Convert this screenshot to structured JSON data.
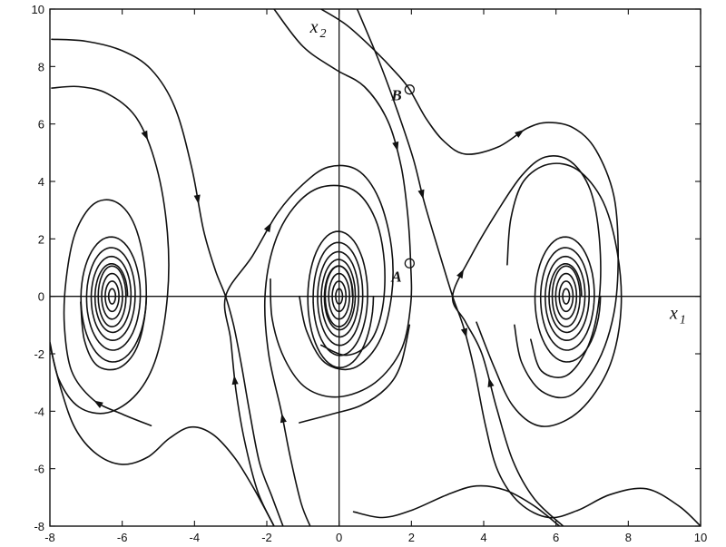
{
  "chart_data": {
    "type": "phase-portrait",
    "xlim": [
      -8,
      10
    ],
    "ylim": [
      -8,
      10
    ],
    "x_ticks": [
      -8,
      -6,
      -4,
      -2,
      0,
      2,
      4,
      6,
      8,
      10
    ],
    "y_ticks": [
      -8,
      -6,
      -4,
      -2,
      0,
      2,
      4,
      6,
      8,
      10
    ],
    "x_tick_labels": [
      "-8",
      "-6",
      "-4",
      "-2",
      "0",
      "2",
      "4",
      "6",
      "8",
      "10"
    ],
    "y_tick_labels": [
      "-8",
      "-6",
      "-4",
      "-2",
      "0",
      "2",
      "4",
      "6",
      "8",
      "10"
    ],
    "xlabel": {
      "base": "x",
      "sub": "1"
    },
    "ylabel": {
      "base": "x",
      "sub": "2"
    },
    "grid": false,
    "equilibria": {
      "spirals": [
        [
          -6.28,
          0
        ],
        [
          0,
          0
        ],
        [
          6.28,
          0
        ]
      ],
      "saddles": [
        [
          -3.14,
          0
        ],
        [
          3.14,
          0
        ]
      ]
    },
    "marked_points": [
      {
        "label": "A",
        "x": 1.95,
        "y": 1.15
      },
      {
        "label": "B",
        "x": 1.95,
        "y": 7.2
      }
    ],
    "trajectories": [
      {
        "name": "top-outer-left",
        "points": [
          [
            -7.95,
            8.95
          ],
          [
            -7,
            8.88
          ],
          [
            -6,
            8.55
          ],
          [
            -5.2,
            7.9
          ],
          [
            -4.55,
            6.6
          ],
          [
            -4.08,
            4.5
          ],
          [
            -3.75,
            2.3
          ],
          [
            -3.42,
            0.9
          ],
          [
            -3.14,
            0
          ],
          [
            -2.92,
            -1
          ],
          [
            -2.7,
            -2.4
          ],
          [
            -2.48,
            -4
          ],
          [
            -2.2,
            -5.8
          ],
          [
            -1.85,
            -7
          ],
          [
            -1.55,
            -8
          ]
        ],
        "arrows": [
          0.42
        ]
      },
      {
        "name": "top-inner-left",
        "points": [
          [
            -7.95,
            7.25
          ],
          [
            -7.2,
            7.3
          ],
          [
            -6.4,
            7.05
          ],
          [
            -5.6,
            6.2
          ],
          [
            -5.05,
            4.5
          ],
          [
            -4.75,
            2.2
          ],
          [
            -4.75,
            0
          ],
          [
            -5.05,
            -2.1
          ],
          [
            -5.6,
            -3.4
          ],
          [
            -6.4,
            -4.05
          ],
          [
            -7.2,
            -3.85
          ],
          [
            -7.75,
            -2.9
          ],
          [
            -8,
            -1.6
          ]
        ],
        "arrows": [
          0.22
        ]
      },
      {
        "name": "top-middle",
        "points": [
          [
            -1.8,
            10
          ],
          [
            -1,
            8.7
          ],
          [
            -0.1,
            7.9
          ],
          [
            0.7,
            7.3
          ],
          [
            1.35,
            6.1
          ],
          [
            1.72,
            4.5
          ],
          [
            1.9,
            2.8
          ],
          [
            1.98,
            1.15
          ],
          [
            1.98,
            -0.3
          ],
          [
            1.72,
            -1.85
          ],
          [
            1,
            -3
          ],
          [
            0,
            -3.5
          ],
          [
            -0.9,
            -3.2
          ],
          [
            -1.5,
            -2.2
          ],
          [
            -1.85,
            -0.8
          ],
          [
            -1.9,
            0.6
          ]
        ],
        "arrows": [
          0.3
        ]
      },
      {
        "name": "top-right",
        "points": [
          [
            -0.5,
            10
          ],
          [
            0.2,
            9.45
          ],
          [
            0.95,
            8.6
          ],
          [
            1.6,
            7.75
          ],
          [
            1.95,
            7.2
          ],
          [
            2.4,
            6.2
          ],
          [
            2.9,
            5.4
          ],
          [
            3.5,
            4.95
          ],
          [
            4.4,
            5.2
          ],
          [
            5.2,
            5.85
          ],
          [
            5.8,
            6.05
          ],
          [
            6.5,
            5.85
          ],
          [
            7.1,
            5.1
          ],
          [
            7.6,
            3.5
          ],
          [
            7.72,
            1.4
          ],
          [
            7.6,
            -0.6
          ],
          [
            7.15,
            -2.3
          ],
          [
            6.4,
            -3.45
          ],
          [
            5.6,
            -3.3
          ],
          [
            5.05,
            -2.3
          ],
          [
            4.85,
            -1
          ]
        ],
        "arrows": [
          0.37
        ]
      },
      {
        "name": "diag-right",
        "points": [
          [
            0.5,
            10
          ],
          [
            1.1,
            8.2
          ],
          [
            1.6,
            6.5
          ],
          [
            2.05,
            4.8
          ],
          [
            2.35,
            3.3
          ],
          [
            2.75,
            1.6
          ],
          [
            3.14,
            0
          ],
          [
            3.45,
            -1.1
          ],
          [
            3.75,
            -2.6
          ],
          [
            4.05,
            -4.5
          ],
          [
            4.4,
            -6.1
          ],
          [
            5,
            -7.2
          ],
          [
            5.8,
            -7.7
          ],
          [
            6.6,
            -7.45
          ],
          [
            7.5,
            -6.9
          ],
          [
            8.5,
            -6.7
          ],
          [
            9.4,
            -7.3
          ],
          [
            10,
            -8
          ]
        ],
        "arrows": [
          0.27,
          0.47
        ]
      },
      {
        "name": "right-sep-up",
        "points": [
          [
            6.2,
            -8
          ],
          [
            5.4,
            -7.05
          ],
          [
            4.8,
            -5.7
          ],
          [
            4.35,
            -3.85
          ],
          [
            3.95,
            -2
          ],
          [
            3.5,
            -0.9
          ],
          [
            3.14,
            0
          ],
          [
            3.65,
            1.4
          ],
          [
            4.35,
            2.9
          ],
          [
            5.05,
            4.2
          ],
          [
            5.7,
            4.85
          ],
          [
            6.4,
            4.7
          ],
          [
            6.95,
            3.7
          ],
          [
            7.2,
            2
          ],
          [
            7.2,
            0
          ],
          [
            6.9,
            -1.7
          ],
          [
            6.3,
            -2.75
          ],
          [
            5.6,
            -2.6
          ],
          [
            5.3,
            -1.5
          ]
        ],
        "arrows": [
          0.22,
          0.38
        ]
      },
      {
        "name": "left-sep-up",
        "points": [
          [
            -1.8,
            -8
          ],
          [
            -2.25,
            -6.8
          ],
          [
            -2.62,
            -5
          ],
          [
            -2.85,
            -3.3
          ],
          [
            -3,
            -1.5
          ],
          [
            -3.14,
            0
          ],
          [
            -2.4,
            1.4
          ],
          [
            -1.7,
            2.9
          ],
          [
            -1,
            3.9
          ],
          [
            -0.3,
            4.5
          ],
          [
            0.5,
            4.4
          ],
          [
            1.1,
            3.4
          ],
          [
            1.45,
            1.7
          ],
          [
            1.45,
            0
          ],
          [
            1.1,
            -1.6
          ],
          [
            0.4,
            -2.5
          ],
          [
            -0.4,
            -2.3
          ],
          [
            -0.9,
            -1.2
          ],
          [
            -1.1,
            0
          ]
        ],
        "arrows": [
          0.2,
          0.42
        ]
      },
      {
        "name": "middle-up",
        "points": [
          [
            -0.8,
            -8
          ],
          [
            -1.05,
            -7.2
          ],
          [
            -1.35,
            -5.6
          ],
          [
            -1.6,
            -4
          ],
          [
            -1.95,
            -2
          ],
          [
            -2.05,
            0
          ],
          [
            -1.8,
            1.8
          ],
          [
            -1.25,
            3.1
          ],
          [
            -0.5,
            3.8
          ],
          [
            0.4,
            3.7
          ],
          [
            1,
            2.7
          ],
          [
            1.25,
            1.2
          ],
          [
            1.2,
            -0.4
          ],
          [
            0.85,
            -1.6
          ],
          [
            0.2,
            -2.05
          ],
          [
            -0.5,
            -1.7
          ]
        ],
        "arrows": [
          0.18
        ]
      },
      {
        "name": "left-bottom",
        "points": [
          [
            -8,
            -1.7
          ],
          [
            -7.7,
            -3.2
          ],
          [
            -7.3,
            -4.6
          ],
          [
            -6.7,
            -5.5
          ],
          [
            -6,
            -5.85
          ],
          [
            -5.3,
            -5.6
          ],
          [
            -4.7,
            -4.95
          ],
          [
            -4.1,
            -4.55
          ],
          [
            -3.5,
            -4.8
          ],
          [
            -2.9,
            -5.6
          ],
          [
            -2.4,
            -6.6
          ],
          [
            -2.05,
            -7.4
          ],
          [
            -1.8,
            -8
          ]
        ],
        "arrows": []
      },
      {
        "name": "left-spiral-2",
        "points": [
          [
            -5.2,
            -4.5
          ],
          [
            -6,
            -4.1
          ],
          [
            -6.8,
            -3.6
          ],
          [
            -7.4,
            -2.6
          ],
          [
            -7.6,
            -1
          ],
          [
            -7.55,
            0.6
          ],
          [
            -7.3,
            2.2
          ],
          [
            -6.8,
            3.2
          ],
          [
            -6.2,
            3.3
          ],
          [
            -5.7,
            2.6
          ],
          [
            -5.4,
            1.2
          ],
          [
            -5.35,
            -0.4
          ],
          [
            -5.6,
            -1.8
          ],
          [
            -6.1,
            -2.5
          ],
          [
            -6.7,
            -2.4
          ],
          [
            -7.05,
            -1.5
          ],
          [
            -7.15,
            -0.2
          ]
        ],
        "arrows": [
          0.1
        ]
      },
      {
        "name": "middle-bottom",
        "points": [
          [
            0.4,
            -7.5
          ],
          [
            1.2,
            -7.7
          ],
          [
            2,
            -7.45
          ],
          [
            3,
            -6.9
          ],
          [
            3.8,
            -6.6
          ],
          [
            4.6,
            -6.75
          ],
          [
            5.4,
            -7.3
          ],
          [
            6.1,
            -8
          ]
        ],
        "arrows": []
      },
      {
        "name": "mid-spiral-outer",
        "points": [
          [
            -1.1,
            -4.4
          ],
          [
            -0.2,
            -4.1
          ],
          [
            0.6,
            -3.8
          ],
          [
            1.3,
            -3.2
          ],
          [
            1.7,
            -2.4
          ],
          [
            1.95,
            -1
          ]
        ],
        "arrows": []
      },
      {
        "name": "right-outer",
        "points": [
          [
            3.8,
            -0.9
          ],
          [
            4.3,
            -2.5
          ],
          [
            4.8,
            -3.8
          ],
          [
            5.5,
            -4.5
          ],
          [
            6.3,
            -4.3
          ],
          [
            7,
            -3.5
          ],
          [
            7.55,
            -2.2
          ],
          [
            7.8,
            -0.4
          ],
          [
            7.7,
            1.5
          ],
          [
            7.3,
            3.3
          ],
          [
            6.6,
            4.4
          ],
          [
            5.8,
            4.6
          ],
          [
            5.1,
            4
          ],
          [
            4.75,
            2.7
          ],
          [
            4.65,
            1.1
          ]
        ],
        "arrows": []
      }
    ],
    "spirals": [
      {
        "center": [
          -6.28,
          0
        ],
        "r0": [
          0.95,
          2.4
        ],
        "decay": 0.85,
        "turns": 4
      },
      {
        "center": [
          0,
          0
        ],
        "r0": [
          0.95,
          2.6
        ],
        "decay": 0.86,
        "turns": 5
      },
      {
        "center": [
          6.28,
          0
        ],
        "r0": [
          0.95,
          2.4
        ],
        "decay": 0.85,
        "turns": 4
      }
    ]
  }
}
